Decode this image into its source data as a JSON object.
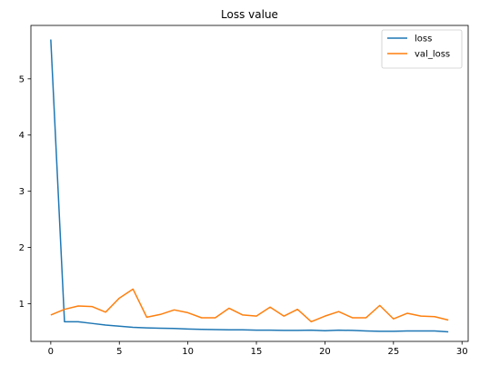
{
  "chart_data": {
    "type": "line",
    "title": "Loss value",
    "xlabel": "",
    "ylabel": "",
    "xlim": [
      -1.45,
      30.45
    ],
    "ylim": [
      0.33,
      5.95
    ],
    "x_ticks": [
      0,
      5,
      10,
      15,
      20,
      25,
      30
    ],
    "y_ticks": [
      1,
      2,
      3,
      4,
      5
    ],
    "x_tick_labels": [
      "0",
      "5",
      "10",
      "15",
      "20",
      "25",
      "30"
    ],
    "y_tick_labels": [
      "1",
      "2",
      "3",
      "4",
      "5"
    ],
    "grid": false,
    "legend_position": "top-right",
    "x": [
      0,
      1,
      2,
      3,
      4,
      5,
      6,
      7,
      8,
      9,
      10,
      11,
      12,
      13,
      14,
      15,
      16,
      17,
      18,
      19,
      20,
      21,
      22,
      23,
      24,
      25,
      26,
      27,
      28,
      29
    ],
    "series": [
      {
        "name": "loss",
        "color": "#1f77b4",
        "values": [
          5.7,
          0.68,
          0.68,
          0.65,
          0.62,
          0.6,
          0.58,
          0.57,
          0.565,
          0.56,
          0.55,
          0.545,
          0.54,
          0.535,
          0.535,
          0.53,
          0.53,
          0.525,
          0.525,
          0.53,
          0.52,
          0.53,
          0.525,
          0.515,
          0.51,
          0.51,
          0.515,
          0.515,
          0.515,
          0.5
        ]
      },
      {
        "name": "val_loss",
        "color": "#ff7f0e",
        "values": [
          0.8,
          0.9,
          0.96,
          0.95,
          0.85,
          1.1,
          1.26,
          0.76,
          0.81,
          0.89,
          0.84,
          0.75,
          0.75,
          0.92,
          0.8,
          0.78,
          0.94,
          0.78,
          0.9,
          0.68,
          0.78,
          0.86,
          0.75,
          0.75,
          0.97,
          0.73,
          0.83,
          0.78,
          0.77,
          0.71
        ]
      }
    ]
  }
}
